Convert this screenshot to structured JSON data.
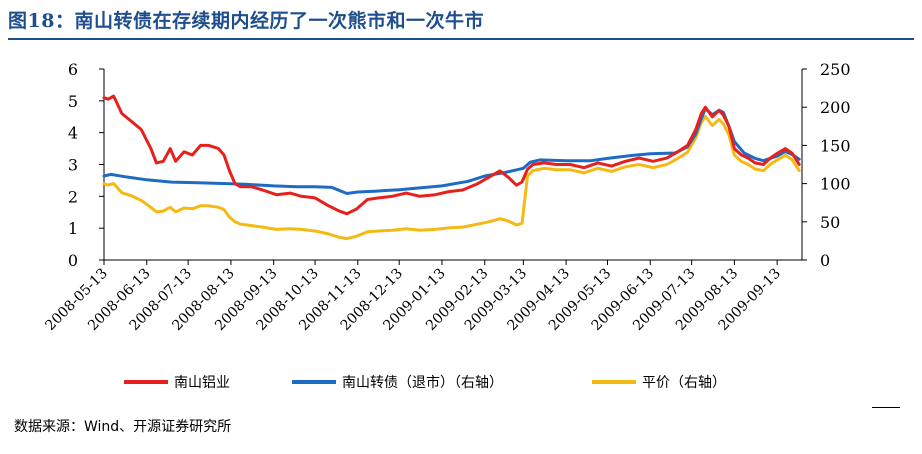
{
  "figure": {
    "title": "图18：南山转债在存续期内经历了一次熊市和一次牛市",
    "source": "数据来源：Wind、开源证券研究所"
  },
  "chart_data": {
    "type": "line",
    "x_start": "2008-05-13",
    "x_end": "2009-10-01",
    "x_ticks": [
      "2008-05-13",
      "2008-06-13",
      "2008-07-13",
      "2008-08-13",
      "2008-09-13",
      "2008-10-13",
      "2008-11-13",
      "2008-12-13",
      "2009-01-13",
      "2009-02-13",
      "2009-03-13",
      "2009-04-13",
      "2009-05-13",
      "2009-06-13",
      "2009-07-13",
      "2009-08-13",
      "2009-09-13"
    ],
    "y_left": {
      "min": 0,
      "max": 6,
      "ticks": [
        0,
        1,
        2,
        3,
        4,
        5,
        6
      ]
    },
    "y_right": {
      "min": 0,
      "max": 250,
      "ticks": [
        0,
        50,
        100,
        150,
        200,
        250
      ]
    },
    "grid": false,
    "legend_position": "bottom",
    "series": [
      {
        "name": "南山铝业",
        "axis": "left",
        "color": "#e8201b",
        "points": [
          [
            "2008-05-13",
            5.1
          ],
          [
            "2008-05-16",
            5.05
          ],
          [
            "2008-05-20",
            5.15
          ],
          [
            "2008-05-26",
            4.6
          ],
          [
            "2008-06-02",
            4.35
          ],
          [
            "2008-06-09",
            4.1
          ],
          [
            "2008-06-16",
            3.5
          ],
          [
            "2008-06-20",
            3.05
          ],
          [
            "2008-06-25",
            3.1
          ],
          [
            "2008-06-30",
            3.5
          ],
          [
            "2008-07-04",
            3.1
          ],
          [
            "2008-07-10",
            3.4
          ],
          [
            "2008-07-16",
            3.3
          ],
          [
            "2008-07-22",
            3.6
          ],
          [
            "2008-07-28",
            3.6
          ],
          [
            "2008-08-04",
            3.5
          ],
          [
            "2008-08-08",
            3.3
          ],
          [
            "2008-08-12",
            2.8
          ],
          [
            "2008-08-16",
            2.4
          ],
          [
            "2008-08-20",
            2.3
          ],
          [
            "2008-08-28",
            2.3
          ],
          [
            "2008-09-05",
            2.2
          ],
          [
            "2008-09-15",
            2.05
          ],
          [
            "2008-09-25",
            2.1
          ],
          [
            "2008-10-03",
            2.0
          ],
          [
            "2008-10-13",
            1.95
          ],
          [
            "2008-10-23",
            1.7
          ],
          [
            "2008-10-30",
            1.55
          ],
          [
            "2008-11-05",
            1.45
          ],
          [
            "2008-11-12",
            1.6
          ],
          [
            "2008-11-20",
            1.9
          ],
          [
            "2008-11-28",
            1.95
          ],
          [
            "2008-12-08",
            2.0
          ],
          [
            "2008-12-18",
            2.1
          ],
          [
            "2008-12-28",
            2.0
          ],
          [
            "2009-01-08",
            2.05
          ],
          [
            "2009-01-18",
            2.15
          ],
          [
            "2009-01-28",
            2.2
          ],
          [
            "2009-02-08",
            2.4
          ],
          [
            "2009-02-16",
            2.6
          ],
          [
            "2009-02-24",
            2.8
          ],
          [
            "2009-03-02",
            2.6
          ],
          [
            "2009-03-08",
            2.35
          ],
          [
            "2009-03-12",
            2.45
          ],
          [
            "2009-03-16",
            2.85
          ],
          [
            "2009-03-20",
            3.0
          ],
          [
            "2009-03-28",
            3.05
          ],
          [
            "2009-04-06",
            3.0
          ],
          [
            "2009-04-16",
            3.0
          ],
          [
            "2009-04-26",
            2.9
          ],
          [
            "2009-05-06",
            3.05
          ],
          [
            "2009-05-16",
            2.95
          ],
          [
            "2009-05-26",
            3.1
          ],
          [
            "2009-06-05",
            3.2
          ],
          [
            "2009-06-15",
            3.1
          ],
          [
            "2009-06-25",
            3.2
          ],
          [
            "2009-07-03",
            3.4
          ],
          [
            "2009-07-10",
            3.6
          ],
          [
            "2009-07-16",
            4.1
          ],
          [
            "2009-07-20",
            4.6
          ],
          [
            "2009-07-23",
            4.8
          ],
          [
            "2009-07-28",
            4.5
          ],
          [
            "2009-08-02",
            4.7
          ],
          [
            "2009-08-05",
            4.55
          ],
          [
            "2009-08-09",
            4.2
          ],
          [
            "2009-08-13",
            3.5
          ],
          [
            "2009-08-18",
            3.3
          ],
          [
            "2009-08-23",
            3.2
          ],
          [
            "2009-08-28",
            3.05
          ],
          [
            "2009-09-03",
            3.0
          ],
          [
            "2009-09-08",
            3.2
          ],
          [
            "2009-09-13",
            3.35
          ],
          [
            "2009-09-19",
            3.5
          ],
          [
            "2009-09-24",
            3.35
          ],
          [
            "2009-09-29",
            3.0
          ]
        ]
      },
      {
        "name": "南山转债（退市）（右轴）",
        "axis": "right",
        "color": "#1e6bc3",
        "points": [
          [
            "2008-05-13",
            110
          ],
          [
            "2008-05-18",
            112
          ],
          [
            "2008-05-28",
            109
          ],
          [
            "2008-06-13",
            105
          ],
          [
            "2008-07-01",
            102
          ],
          [
            "2008-07-20",
            101
          ],
          [
            "2008-08-10",
            100
          ],
          [
            "2008-08-25",
            99
          ],
          [
            "2008-09-13",
            97
          ],
          [
            "2008-09-30",
            96
          ],
          [
            "2008-10-13",
            96
          ],
          [
            "2008-10-25",
            95
          ],
          [
            "2008-11-01",
            90
          ],
          [
            "2008-11-05",
            87
          ],
          [
            "2008-11-13",
            89
          ],
          [
            "2008-11-25",
            90
          ],
          [
            "2008-12-13",
            92
          ],
          [
            "2009-01-01",
            95
          ],
          [
            "2009-01-13",
            97
          ],
          [
            "2009-02-01",
            103
          ],
          [
            "2009-02-13",
            110
          ],
          [
            "2009-03-01",
            115
          ],
          [
            "2009-03-13",
            120
          ],
          [
            "2009-03-18",
            128
          ],
          [
            "2009-03-25",
            131
          ],
          [
            "2009-04-13",
            130
          ],
          [
            "2009-05-01",
            130
          ],
          [
            "2009-05-13",
            133
          ],
          [
            "2009-06-01",
            137
          ],
          [
            "2009-06-13",
            139
          ],
          [
            "2009-07-01",
            140
          ],
          [
            "2009-07-10",
            148
          ],
          [
            "2009-07-16",
            165
          ],
          [
            "2009-07-20",
            185
          ],
          [
            "2009-07-23",
            198
          ],
          [
            "2009-07-28",
            190
          ],
          [
            "2009-08-02",
            196
          ],
          [
            "2009-08-05",
            193
          ],
          [
            "2009-08-09",
            175
          ],
          [
            "2009-08-13",
            155
          ],
          [
            "2009-08-20",
            140
          ],
          [
            "2009-08-28",
            133
          ],
          [
            "2009-09-03",
            130
          ],
          [
            "2009-09-13",
            136
          ],
          [
            "2009-09-19",
            142
          ],
          [
            "2009-09-24",
            138
          ],
          [
            "2009-09-29",
            132
          ]
        ]
      },
      {
        "name": "平价（右轴）",
        "axis": "right",
        "color": "#f5b914",
        "points": [
          [
            "2008-05-13",
            100
          ],
          [
            "2008-05-16",
            98
          ],
          [
            "2008-05-20",
            100
          ],
          [
            "2008-05-26",
            88
          ],
          [
            "2008-06-02",
            84
          ],
          [
            "2008-06-09",
            78
          ],
          [
            "2008-06-16",
            69
          ],
          [
            "2008-06-20",
            63
          ],
          [
            "2008-06-25",
            64
          ],
          [
            "2008-06-30",
            69
          ],
          [
            "2008-07-04",
            63
          ],
          [
            "2008-07-10",
            68
          ],
          [
            "2008-07-16",
            67
          ],
          [
            "2008-07-22",
            71
          ],
          [
            "2008-07-28",
            71
          ],
          [
            "2008-08-04",
            69
          ],
          [
            "2008-08-08",
            66
          ],
          [
            "2008-08-12",
            56
          ],
          [
            "2008-08-16",
            50
          ],
          [
            "2008-08-20",
            47
          ],
          [
            "2008-08-28",
            45
          ],
          [
            "2008-09-05",
            43
          ],
          [
            "2008-09-15",
            40
          ],
          [
            "2008-09-25",
            41
          ],
          [
            "2008-10-03",
            40
          ],
          [
            "2008-10-13",
            38
          ],
          [
            "2008-10-23",
            34
          ],
          [
            "2008-10-30",
            30
          ],
          [
            "2008-11-05",
            28
          ],
          [
            "2008-11-12",
            31
          ],
          [
            "2008-11-20",
            37
          ],
          [
            "2008-11-28",
            38
          ],
          [
            "2008-12-08",
            39
          ],
          [
            "2008-12-18",
            41
          ],
          [
            "2008-12-28",
            39
          ],
          [
            "2009-01-08",
            40
          ],
          [
            "2009-01-18",
            42
          ],
          [
            "2009-01-28",
            43
          ],
          [
            "2009-02-08",
            47
          ],
          [
            "2009-02-16",
            50
          ],
          [
            "2009-02-24",
            54
          ],
          [
            "2009-03-02",
            51
          ],
          [
            "2009-03-08",
            46
          ],
          [
            "2009-03-12",
            48
          ],
          [
            "2009-03-16",
            110
          ],
          [
            "2009-03-20",
            117
          ],
          [
            "2009-03-28",
            120
          ],
          [
            "2009-04-06",
            118
          ],
          [
            "2009-04-16",
            118
          ],
          [
            "2009-04-26",
            114
          ],
          [
            "2009-05-06",
            120
          ],
          [
            "2009-05-16",
            116
          ],
          [
            "2009-05-26",
            122
          ],
          [
            "2009-06-05",
            125
          ],
          [
            "2009-06-15",
            121
          ],
          [
            "2009-06-25",
            125
          ],
          [
            "2009-07-03",
            133
          ],
          [
            "2009-07-10",
            141
          ],
          [
            "2009-07-16",
            160
          ],
          [
            "2009-07-20",
            180
          ],
          [
            "2009-07-23",
            188
          ],
          [
            "2009-07-28",
            176
          ],
          [
            "2009-08-02",
            184
          ],
          [
            "2009-08-05",
            178
          ],
          [
            "2009-08-09",
            164
          ],
          [
            "2009-08-13",
            137
          ],
          [
            "2009-08-18",
            129
          ],
          [
            "2009-08-23",
            125
          ],
          [
            "2009-08-28",
            119
          ],
          [
            "2009-09-03",
            117
          ],
          [
            "2009-09-08",
            125
          ],
          [
            "2009-09-13",
            131
          ],
          [
            "2009-09-19",
            137
          ],
          [
            "2009-09-24",
            131
          ],
          [
            "2009-09-29",
            117
          ]
        ]
      }
    ]
  }
}
